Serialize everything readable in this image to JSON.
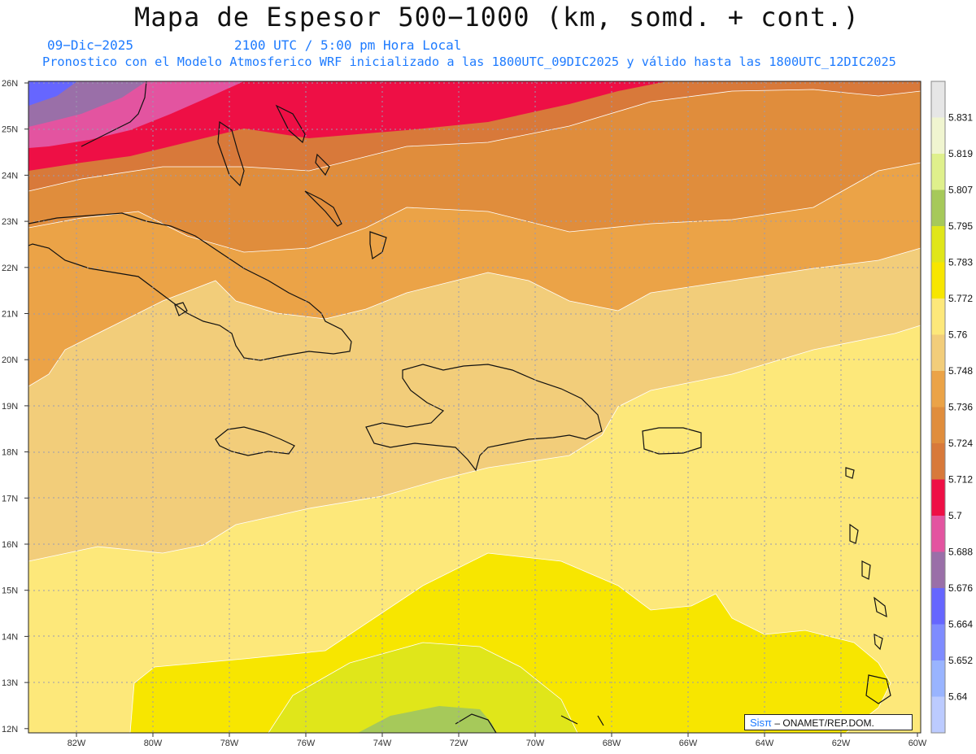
{
  "title": "Mapa de Espesor 500−1000 (km, somd. + cont.)",
  "date_label": "09−Dic−2025",
  "time_label": "2100 UTC / 5:00 pm Hora Local",
  "model_label": "Pronostico con el Modelo Atmosferico WRF inicializado a las 1800UTC_09DIC2025 y válido hasta las  1800UTC_12DIC2025",
  "credit": {
    "logo": "Sisπ",
    "text": " – ONAMET/REP.DOM."
  },
  "lat_labels": [
    "26N",
    "25N",
    "24N",
    "23N",
    "22N",
    "21N",
    "20N",
    "19N",
    "18N",
    "17N",
    "16N",
    "15N",
    "14N",
    "13N",
    "12N"
  ],
  "lon_labels": [
    "82W",
    "80W",
    "78W",
    "76W",
    "74W",
    "72W",
    "70W",
    "68W",
    "66W",
    "64W",
    "62W",
    "60W"
  ],
  "colorbar": {
    "labels": [
      "5.831",
      "5.819",
      "5.807",
      "5.795",
      "5.783",
      "5.772",
      "5.76",
      "5.748",
      "5.736",
      "5.724",
      "5.712",
      "5.7",
      "5.688",
      "5.676",
      "5.664",
      "5.652",
      "5.64"
    ],
    "colors": [
      "#e6e6e6",
      "#f0f5d0",
      "#dff08c",
      "#a6c95a",
      "#e0e61a",
      "#f7e600",
      "#fde87a",
      "#f2cd7a",
      "#eba347",
      "#e08d3c",
      "#d8793a",
      "#ee0f45",
      "#e354a0",
      "#9a6fa8",
      "#6666ff",
      "#7f8cff",
      "#99b4ff",
      "#bccbff"
    ]
  },
  "colors": {
    "sea_label_blue": "#1e7bff",
    "coast": "#111111",
    "grid": "#9a9ab0"
  }
}
